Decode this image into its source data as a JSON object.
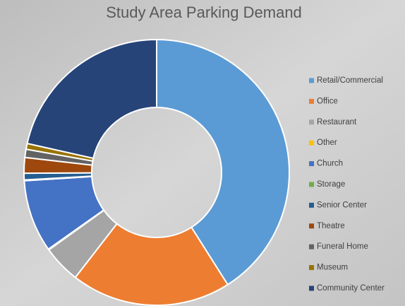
{
  "chart_data": {
    "type": "donut",
    "title": "Study Area Parking Demand",
    "categories": [
      "Retail/Commercial",
      "Office",
      "Restaurant",
      "Other",
      "Church",
      "Storage",
      "Senior Center",
      "Theatre",
      "Funeral Home",
      "Museum",
      "Community Center"
    ],
    "values": [
      41,
      19.5,
      4.6,
      0.1,
      8.8,
      0.1,
      0.8,
      1.9,
      1,
      0.7,
      21.5
    ],
    "colors": [
      "#5b9bd5",
      "#ed7d31",
      "#a5a5a5",
      "#ffc000",
      "#4472c4",
      "#70ad47",
      "#255e91",
      "#9e480e",
      "#636363",
      "#997300",
      "#264478"
    ],
    "legend": "right"
  }
}
